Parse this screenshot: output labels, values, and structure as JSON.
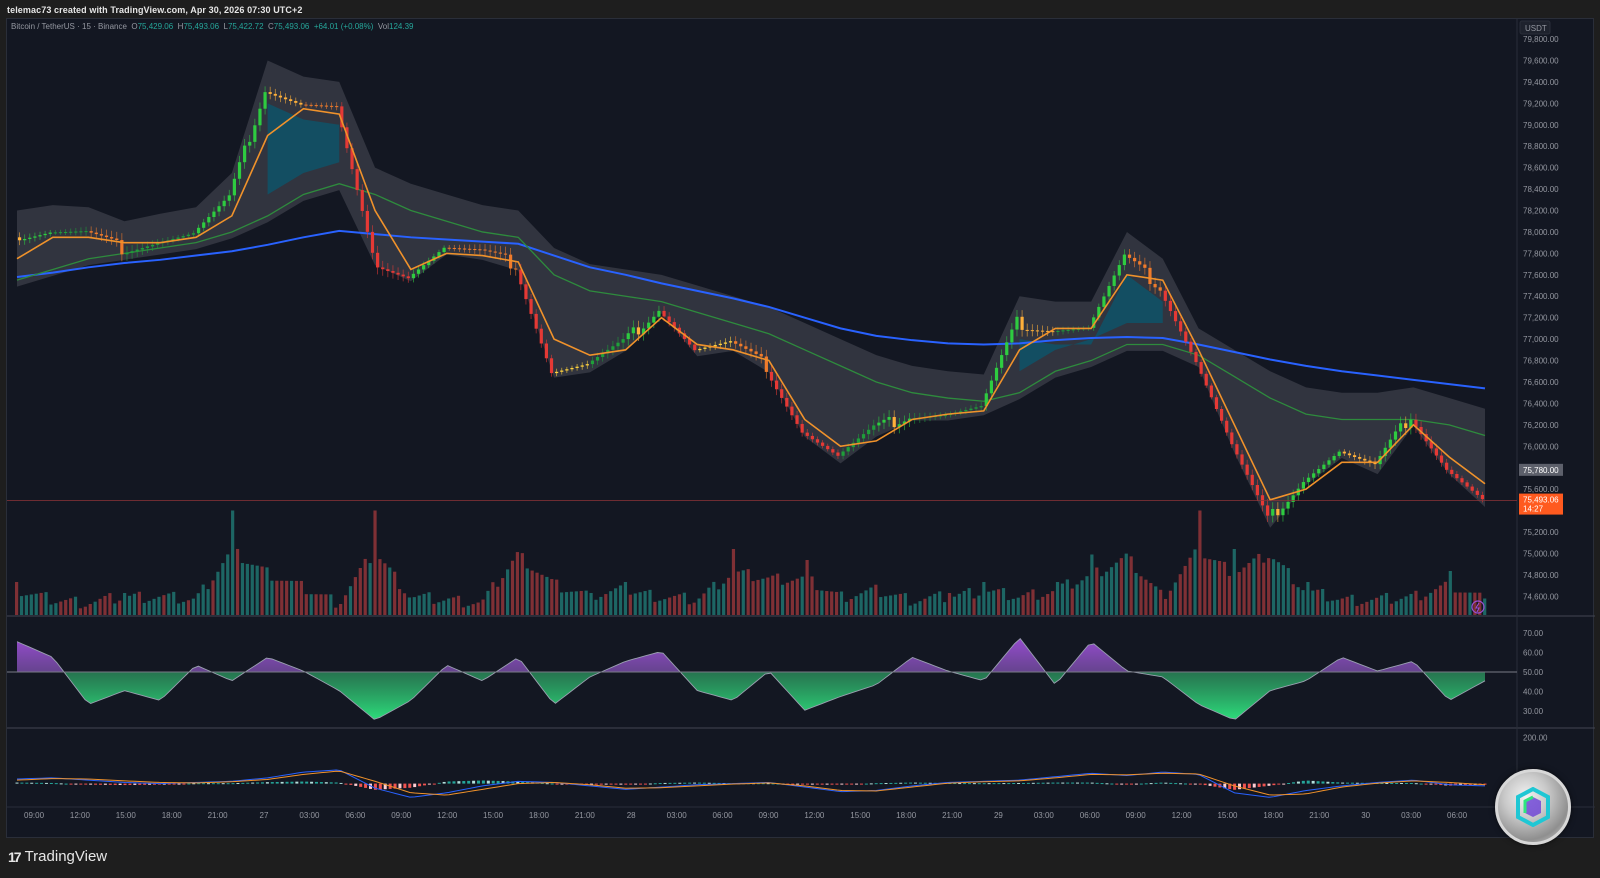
{
  "caption": "telemac73 created with TradingView.com, Apr 30, 2026 07:30 UTC+2",
  "legend": {
    "symbol": "Bitcoin / TetherUS · 15 · Binance",
    "o_label": "O",
    "o": "75,429.06",
    "h_label": "H",
    "h": "75,493.06",
    "l_label": "L",
    "l": "75,422.72",
    "c_label": "C",
    "c": "75,493.06",
    "change": "+64.01 (+0.08%)",
    "vol_label": "Vol",
    "vol": "124.39"
  },
  "price_axis": {
    "currency": "USDT",
    "ticks": [
      "79,800.00",
      "79,600.00",
      "79,400.00",
      "79,200.00",
      "79,000.00",
      "78,800.00",
      "78,600.00",
      "78,400.00",
      "78,200.00",
      "78,000.00",
      "77,800.00",
      "77,600.00",
      "77,400.00",
      "77,200.00",
      "77,000.00",
      "76,800.00",
      "76,600.00",
      "76,400.00",
      "76,200.00",
      "76,000.00",
      "75,600.00",
      "75,200.00",
      "75,000.00",
      "74,800.00",
      "74,600.00"
    ],
    "marker_gray": "75,780.00",
    "marker_last": "75,493.06",
    "marker_countdown": "14:27"
  },
  "rsi_axis": {
    "ticks": [
      "70.00",
      "60.00",
      "50.00",
      "40.00",
      "30.00"
    ]
  },
  "macd_axis": {
    "ticks": [
      "200.00"
    ]
  },
  "time_axis": {
    "ticks": [
      "09:00",
      "12:00",
      "15:00",
      "18:00",
      "21:00",
      "27",
      "03:00",
      "06:00",
      "09:00",
      "12:00",
      "15:00",
      "18:00",
      "21:00",
      "28",
      "03:00",
      "06:00",
      "09:00",
      "12:00",
      "15:00",
      "18:00",
      "21:00",
      "29",
      "03:00",
      "06:00",
      "09:00",
      "12:00",
      "15:00",
      "18:00",
      "21:00",
      "30",
      "03:00",
      "06:00"
    ]
  },
  "footer": {
    "brand": "TradingView",
    "brand_mark": "17"
  },
  "colors": {
    "up": "#26a69a",
    "down": "#ef5350",
    "ema_fast": "#f0922b",
    "ema_mid": "#2e8b3d",
    "ema_slow": "#2962ff",
    "cloud": "#4a4d58",
    "cloud_bull": "#0e5468",
    "rsi_hi": "#9c4fd6",
    "rsi_lo": "#2ee67f",
    "last_price": "#ff5a1f"
  },
  "chart_data": {
    "type": "candlestick",
    "title": "Bitcoin / TetherUS · 15 · Binance",
    "xlabel": "",
    "ylabel": "USDT",
    "ylim": [
      74500,
      79950
    ],
    "x": [
      "26 07:00",
      "26 09:00",
      "26 12:00",
      "26 15:00",
      "26 18:00",
      "26 21:00",
      "27 00:00",
      "27 03:00",
      "27 04:30",
      "27 06:00",
      "27 07:00",
      "27 09:00",
      "27 12:00",
      "27 15:00",
      "27 17:00",
      "27 18:00",
      "27 21:00",
      "28 00:00",
      "28 03:00",
      "28 06:00",
      "28 09:00",
      "28 12:00",
      "28 15:00",
      "28 18:00",
      "28 21:00",
      "29 00:00",
      "29 03:00",
      "29 05:00",
      "29 06:00",
      "29 09:00",
      "29 12:00",
      "29 13:30",
      "29 15:00",
      "29 16:30",
      "29 18:00",
      "29 20:00",
      "29 21:00",
      "30 00:00",
      "30 03:00",
      "30 04:30",
      "30 06:00",
      "30 07:30"
    ],
    "close": [
      77950,
      78000,
      77980,
      77850,
      77920,
      77980,
      78300,
      79350,
      79200,
      79150,
      77750,
      77600,
      77850,
      77800,
      77700,
      76700,
      76750,
      76950,
      77300,
      76900,
      76950,
      76750,
      76150,
      75900,
      76150,
      76300,
      76300,
      76350,
      77150,
      77100,
      77100,
      77750,
      77500,
      76800,
      76000,
      75300,
      75700,
      75950,
      75800,
      76300,
      75800,
      75493
    ],
    "series": [
      {
        "name": "EMA fast (orange)",
        "values": [
          77750,
          77950,
          77950,
          77900,
          77900,
          77950,
          78150,
          78900,
          79150,
          79100,
          78200,
          77650,
          77800,
          77780,
          77720,
          77000,
          76850,
          76900,
          77200,
          76950,
          76900,
          76800,
          76250,
          76000,
          76050,
          76250,
          76300,
          76330,
          76900,
          77100,
          77100,
          77600,
          77550,
          76900,
          76200,
          75500,
          75600,
          75850,
          75850,
          76200,
          75900,
          75650
        ]
      },
      {
        "name": "EMA mid (green)",
        "values": [
          77550,
          77650,
          77750,
          77800,
          77850,
          77900,
          78000,
          78150,
          78350,
          78450,
          78350,
          78200,
          78100,
          78000,
          77950,
          77600,
          77450,
          77400,
          77350,
          77250,
          77150,
          77050,
          76900,
          76750,
          76600,
          76500,
          76450,
          76420,
          76500,
          76700,
          76800,
          76950,
          76950,
          76850,
          76650,
          76450,
          76300,
          76250,
          76250,
          76250,
          76200,
          76100
        ]
      },
      {
        "name": "EMA slow (blue)",
        "values": [
          77580,
          77620,
          77670,
          77710,
          77740,
          77780,
          77820,
          77880,
          77950,
          78010,
          77980,
          77950,
          77930,
          77910,
          77890,
          77780,
          77670,
          77600,
          77520,
          77450,
          77380,
          77300,
          77200,
          77100,
          77030,
          76990,
          76960,
          76950,
          76960,
          76990,
          77010,
          77020,
          77010,
          76950,
          76880,
          76810,
          76750,
          76700,
          76660,
          76620,
          76580,
          76540
        ]
      }
    ],
    "volume_relative": [
      0.3,
      0.15,
      0.1,
      0.2,
      0.2,
      0.15,
      0.95,
      0.6,
      0.35,
      0.1,
      0.95,
      0.2,
      0.15,
      0.1,
      0.9,
      0.4,
      0.2,
      0.3,
      0.2,
      0.15,
      0.6,
      0.5,
      0.5,
      0.2,
      0.3,
      0.15,
      0.2,
      0.3,
      0.2,
      0.3,
      0.55,
      0.85,
      0.2,
      0.95,
      0.6,
      0.9,
      0.3,
      0.15,
      0.15,
      0.2,
      0.4,
      0.15
    ],
    "rsi": {
      "values": [
        70,
        62,
        38,
        45,
        40,
        58,
        50,
        62,
        55,
        45,
        30,
        40,
        58,
        50,
        62,
        38,
        52,
        60,
        65,
        45,
        40,
        55,
        35,
        42,
        48,
        62,
        55,
        50,
        72,
        48,
        70,
        55,
        52,
        38,
        30,
        45,
        50,
        62,
        55,
        60,
        40,
        50
      ],
      "ylim": [
        25,
        75
      ],
      "midline": 50
    },
    "macd": {
      "macd": [
        20,
        25,
        15,
        5,
        0,
        5,
        10,
        25,
        50,
        60,
        -20,
        -60,
        -40,
        -10,
        10,
        5,
        -10,
        -25,
        -15,
        -5,
        0,
        5,
        -15,
        -35,
        -30,
        -10,
        5,
        10,
        15,
        30,
        45,
        35,
        50,
        40,
        -40,
        -60,
        -30,
        -10,
        5,
        15,
        -5,
        -10
      ],
      "signal": [
        15,
        22,
        20,
        12,
        5,
        3,
        8,
        18,
        40,
        55,
        10,
        -40,
        -50,
        -25,
        0,
        5,
        -5,
        -20,
        -18,
        -10,
        -2,
        3,
        -10,
        -30,
        -32,
        -15,
        2,
        8,
        12,
        25,
        40,
        38,
        45,
        42,
        -10,
        -50,
        -45,
        -15,
        2,
        12,
        5,
        -5
      ],
      "ylim": [
        -80,
        220
      ]
    }
  }
}
